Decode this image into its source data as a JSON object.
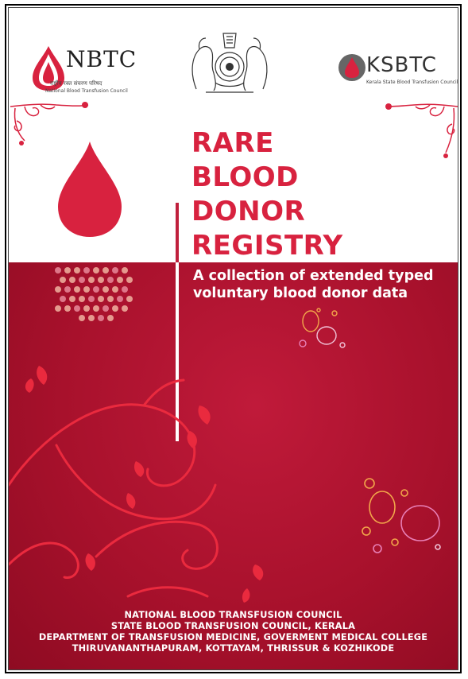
{
  "header": {
    "left_logo": {
      "name": "NBTC",
      "hindi": "राष्ट्रीय रक्त संचरण परिषद",
      "subtitle": "National Blood Transfusion Council"
    },
    "center_emblem": {
      "icon": "kerala-state-emblem-icon"
    },
    "right_logo": {
      "name": "KSBTC",
      "subtitle": "Kerala State Blood Transfusion Council"
    }
  },
  "title": {
    "line1": "RARE",
    "line2": "BLOOD",
    "line3": "DONOR",
    "line4": "REGISTRY"
  },
  "subtitle": {
    "line1": "A collection of extended typed",
    "line2": "voluntary blood donor data"
  },
  "footer": {
    "line1": "NATIONAL BLOOD TRANSFUSION COUNCIL",
    "line2": "STATE BLOOD TRANSFUSION COUNCIL, KERALA",
    "line3": "DEPARTMENT OF TRANSFUSION MEDICINE, GOVERMENT MEDICAL COLLEGE",
    "line4": "THIRUVANANTHAPURAM, KOTTAYAM, THRISSUR & KOZHIKODE"
  },
  "colors": {
    "title_red": "#d8223f",
    "background_red": "#a8112c",
    "white": "#ffffff"
  }
}
